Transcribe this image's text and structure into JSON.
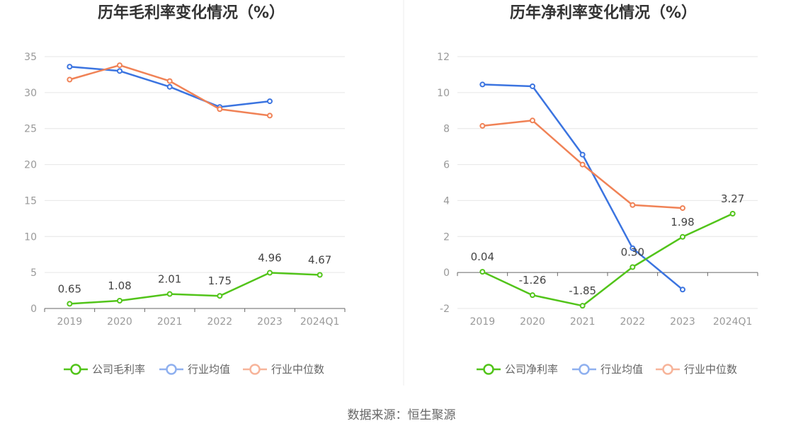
{
  "colors": {
    "company": "#52c41a",
    "industry_avg": "#3b74e0",
    "industry_median": "#f08256",
    "legend_avg": "#8fb0ef",
    "legend_median": "#f7b49a",
    "grid": "#e6e6e6",
    "axis": "#666666",
    "divider": "#eeeeee"
  },
  "source_text": "数据来源：恒生聚源",
  "chart_data": [
    {
      "type": "line",
      "title": "历年毛利率变化情况（%）",
      "categories": [
        "2019",
        "2020",
        "2021",
        "2022",
        "2023",
        "2024Q1"
      ],
      "yticks": [
        "0",
        "5",
        "10",
        "15",
        "20",
        "25",
        "30",
        "35"
      ],
      "ylim": [
        0,
        35
      ],
      "grid": true,
      "legend_position": "bottom",
      "series": [
        {
          "name": "公司毛利率",
          "key": "company",
          "values": [
            0.65,
            1.08,
            2.01,
            1.75,
            4.96,
            4.67
          ],
          "labels": [
            "0.65",
            "1.08",
            "2.01",
            "1.75",
            "4.96",
            "4.67"
          ]
        },
        {
          "name": "行业均值",
          "key": "industry_avg",
          "values": [
            33.6,
            33.0,
            30.8,
            28.0,
            28.8,
            null
          ]
        },
        {
          "name": "行业中位数",
          "key": "industry_median",
          "values": [
            31.8,
            33.8,
            31.6,
            27.7,
            26.8,
            null
          ]
        }
      ]
    },
    {
      "type": "line",
      "title": "历年净利率变化情况（%）",
      "categories": [
        "2019",
        "2020",
        "2021",
        "2022",
        "2023",
        "2024Q1"
      ],
      "yticks": [
        "-2",
        "0",
        "2",
        "4",
        "6",
        "8",
        "10",
        "12"
      ],
      "ylim": [
        -2,
        12
      ],
      "grid": true,
      "legend_position": "bottom",
      "series": [
        {
          "name": "公司净利率",
          "key": "company",
          "values": [
            0.04,
            -1.26,
            -1.85,
            0.3,
            1.98,
            3.27
          ],
          "labels": [
            "0.04",
            "-1.26",
            "-1.85",
            "0.30",
            "1.98",
            "3.27"
          ]
        },
        {
          "name": "行业均值",
          "key": "industry_avg",
          "values": [
            10.45,
            10.35,
            6.55,
            1.35,
            -0.95,
            null
          ]
        },
        {
          "name": "行业中位数",
          "key": "industry_median",
          "values": [
            8.15,
            8.45,
            6.0,
            3.75,
            3.58,
            null
          ]
        }
      ]
    }
  ]
}
